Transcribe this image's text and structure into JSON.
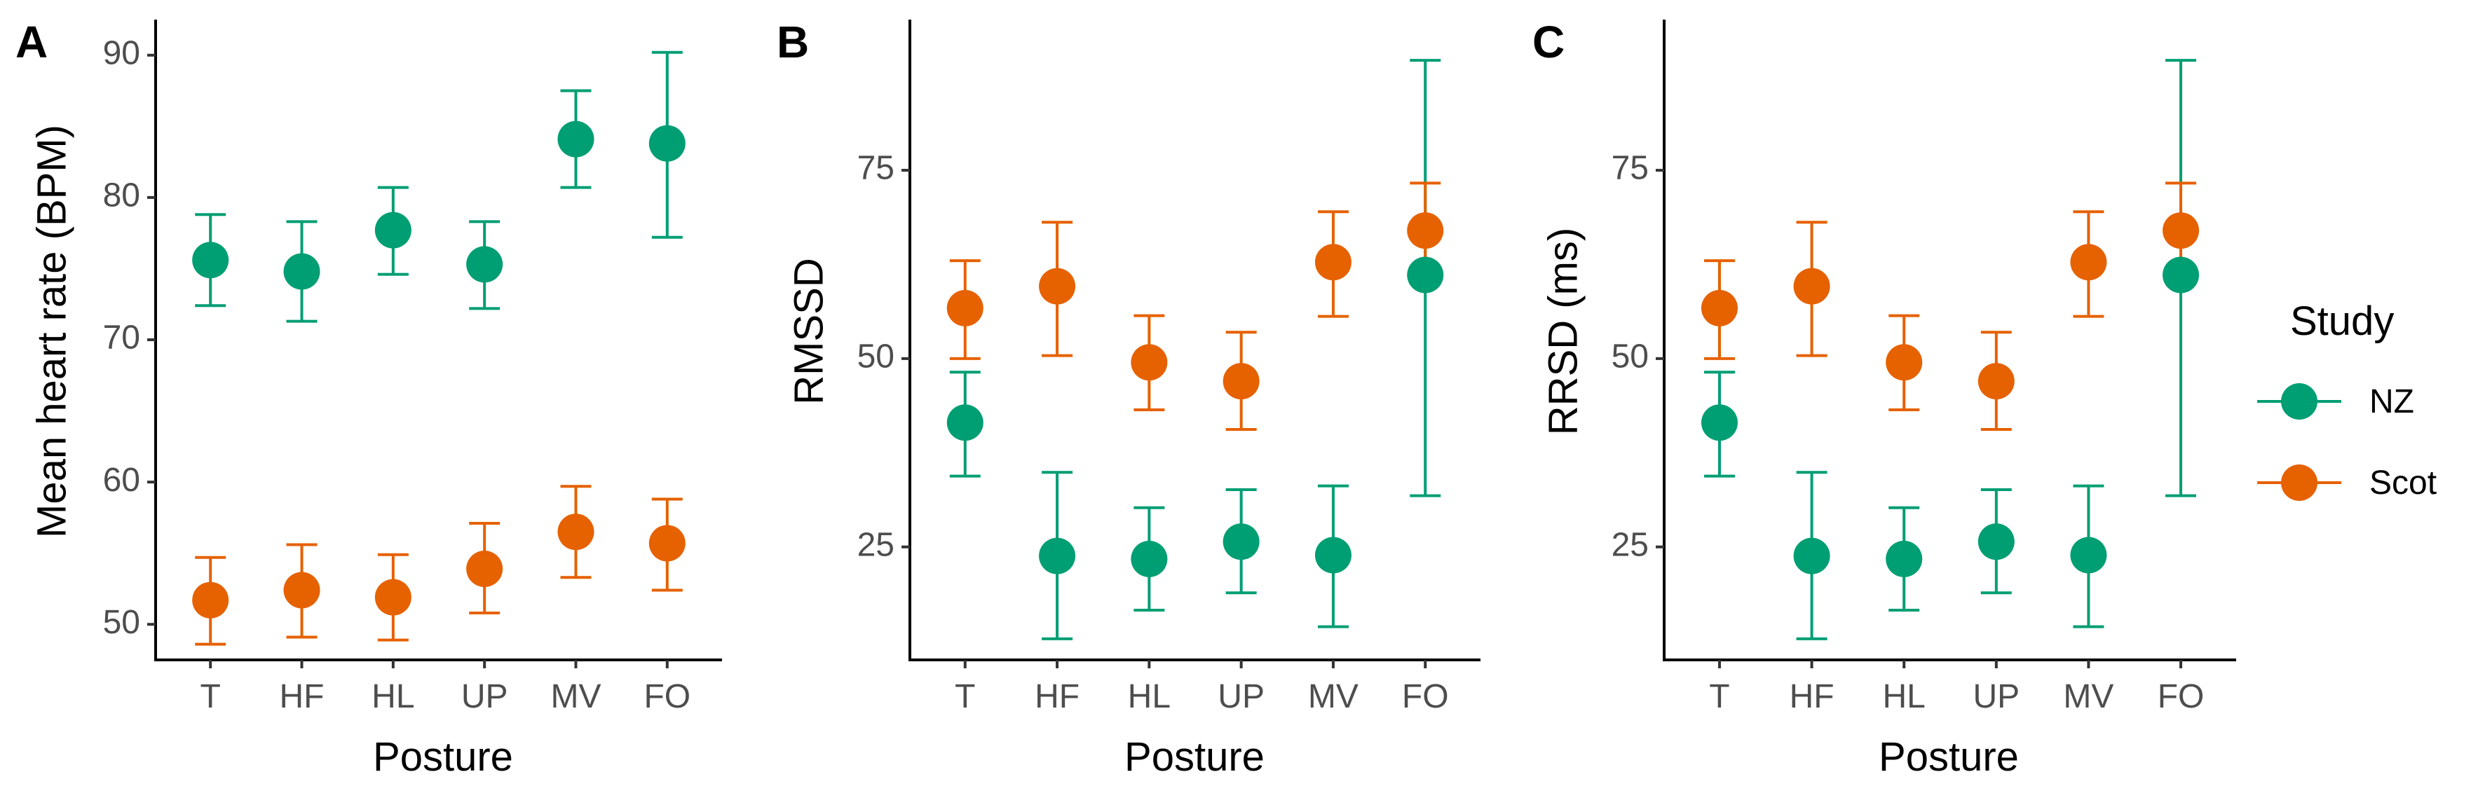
{
  "figure": {
    "legend": {
      "title": "Study",
      "entries": [
        {
          "name": "NZ",
          "color": "#009E73"
        },
        {
          "name": "Scot",
          "color": "#E66100"
        }
      ]
    }
  },
  "chart_data": [
    {
      "panel": "A",
      "type": "scatter",
      "errorbars": true,
      "xlabel": "Posture",
      "ylabel": "Mean heart rate (BPM)",
      "categories": [
        "T",
        "HF",
        "HL",
        "UP",
        "MV",
        "FO"
      ],
      "ylim": [
        47.5,
        92.5
      ],
      "yticks": [
        50,
        60,
        70,
        80,
        90
      ],
      "series": [
        {
          "name": "NZ",
          "color": "#009E73",
          "values": [
            75.6,
            74.8,
            77.7,
            75.3,
            84.1,
            83.8
          ],
          "lower": [
            72.4,
            71.3,
            74.6,
            72.2,
            80.7,
            77.2
          ],
          "upper": [
            78.8,
            78.3,
            80.7,
            78.3,
            87.5,
            90.2
          ]
        },
        {
          "name": "Scot",
          "color": "#E66100",
          "values": [
            51.7,
            52.4,
            51.9,
            53.9,
            56.5,
            55.7
          ],
          "lower": [
            48.6,
            49.1,
            48.9,
            50.8,
            53.3,
            52.4
          ],
          "upper": [
            54.7,
            55.6,
            54.9,
            57.1,
            59.7,
            58.8
          ]
        }
      ]
    },
    {
      "panel": "B",
      "type": "scatter",
      "errorbars": true,
      "xlabel": "Posture",
      "ylabel": "RMSSD",
      "categories": [
        "T",
        "HF",
        "HL",
        "UP",
        "MV",
        "FO"
      ],
      "ylim": [
        10,
        95
      ],
      "yticks": [
        25,
        50,
        75
      ],
      "series": [
        {
          "name": "NZ",
          "color": "#009E73",
          "values": [
            41.5,
            23.8,
            23.4,
            25.7,
            23.9,
            61.1
          ],
          "lower": [
            34.4,
            12.8,
            16.6,
            18.9,
            14.4,
            31.8
          ],
          "upper": [
            48.2,
            34.9,
            30.2,
            32.6,
            33.1,
            89.6
          ]
        },
        {
          "name": "Scot",
          "color": "#E66100",
          "values": [
            56.7,
            59.6,
            49.5,
            47.0,
            62.8,
            67.0
          ],
          "lower": [
            50.0,
            50.4,
            43.2,
            40.6,
            55.6,
            60.1
          ],
          "upper": [
            63.0,
            68.1,
            55.7,
            53.5,
            69.5,
            73.3
          ]
        }
      ]
    },
    {
      "panel": "C",
      "type": "scatter",
      "errorbars": true,
      "xlabel": "Posture",
      "ylabel": "RRSD (ms)",
      "categories": [
        "T",
        "HF",
        "HL",
        "UP",
        "MV",
        "FO"
      ],
      "ylim": [
        10,
        95
      ],
      "yticks": [
        25,
        50,
        75
      ],
      "series": [
        {
          "name": "NZ",
          "color": "#009E73",
          "values": [
            41.5,
            23.8,
            23.4,
            25.7,
            23.9,
            61.1
          ],
          "lower": [
            34.4,
            12.8,
            16.6,
            18.9,
            14.4,
            31.8
          ],
          "upper": [
            48.2,
            34.9,
            30.2,
            32.6,
            33.1,
            89.6
          ]
        },
        {
          "name": "Scot",
          "color": "#E66100",
          "values": [
            56.7,
            59.6,
            49.5,
            47.0,
            62.8,
            67.0
          ],
          "lower": [
            50.0,
            50.4,
            43.2,
            40.6,
            55.6,
            60.1
          ],
          "upper": [
            63.0,
            68.1,
            55.7,
            53.5,
            69.5,
            73.3
          ]
        }
      ]
    }
  ]
}
